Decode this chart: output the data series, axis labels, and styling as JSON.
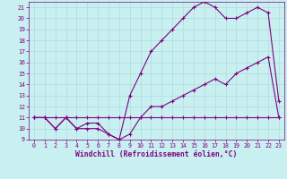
{
  "xlabel": "Windchill (Refroidissement éolien,°C)",
  "bg_color": "#c8f0f0",
  "line_color": "#800080",
  "grid_color": "#b0dada",
  "xlim": [
    -0.5,
    23.5
  ],
  "ylim": [
    9,
    21.5
  ],
  "xticks": [
    0,
    1,
    2,
    3,
    4,
    5,
    6,
    7,
    8,
    9,
    10,
    11,
    12,
    13,
    14,
    15,
    16,
    17,
    18,
    19,
    20,
    21,
    22,
    23
  ],
  "yticks": [
    9,
    10,
    11,
    12,
    13,
    14,
    15,
    16,
    17,
    18,
    19,
    20,
    21
  ],
  "line1_x": [
    0,
    1,
    2,
    3,
    4,
    5,
    6,
    7,
    8,
    9,
    10,
    11,
    12,
    13,
    14,
    15,
    16,
    17,
    18,
    19,
    20,
    21,
    22,
    23
  ],
  "line1_y": [
    11,
    11,
    11,
    11,
    11,
    11,
    11,
    11,
    11,
    11,
    11,
    11,
    11,
    11,
    11,
    11,
    11,
    11,
    11,
    11,
    11,
    11,
    11,
    11
  ],
  "line2_x": [
    0,
    1,
    2,
    3,
    4,
    5,
    6,
    7,
    8,
    9,
    10,
    11,
    12,
    13,
    14,
    15,
    16,
    17,
    18,
    19,
    20,
    21,
    22,
    23
  ],
  "line2_y": [
    11,
    11,
    10,
    11,
    10,
    10,
    10,
    9.5,
    9,
    9.5,
    11,
    12,
    12,
    12.5,
    13,
    13.5,
    14,
    14.5,
    14,
    15,
    15.5,
    16,
    16.5,
    11
  ],
  "line3_x": [
    0,
    1,
    2,
    3,
    4,
    5,
    6,
    7,
    8,
    9,
    10,
    11,
    12,
    13,
    14,
    15,
    16,
    17,
    18,
    19,
    20,
    21,
    22,
    23
  ],
  "line3_y": [
    11,
    11,
    10,
    11,
    10,
    10.5,
    10.5,
    9.5,
    9,
    13,
    15,
    17,
    18,
    19,
    20,
    21,
    21.5,
    21,
    20,
    20,
    20.5,
    21,
    20.5,
    12.5
  ],
  "marker": "+",
  "markersize": 3,
  "linewidth": 0.8,
  "tick_fontsize": 4.8,
  "xlabel_fontsize": 5.8,
  "tick_color": "#800080",
  "xlabel_color": "#800080"
}
